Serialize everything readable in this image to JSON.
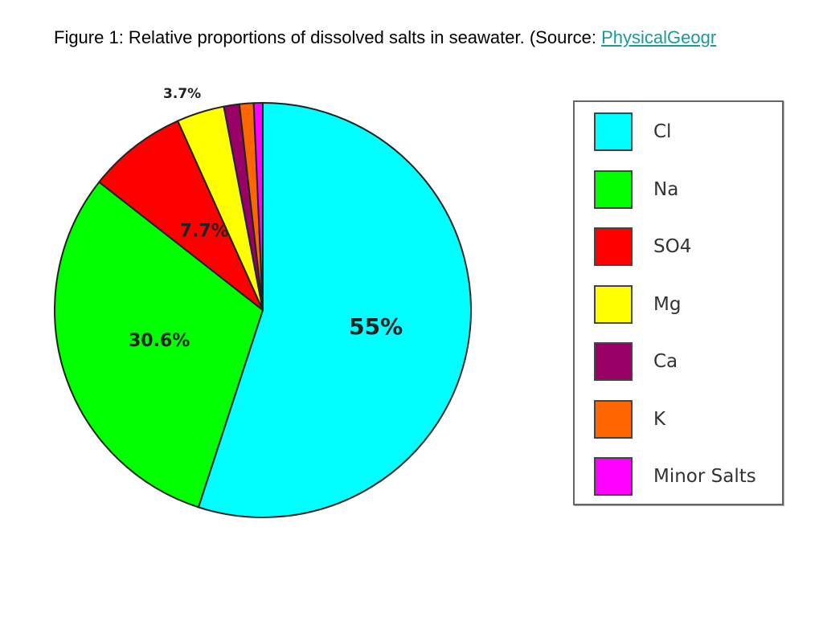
{
  "caption": {
    "text": "Figure 1: Relative proportions of dissolved salts in seawater. (Source: ",
    "link_text": "PhysicalGeogr"
  },
  "chart_data": {
    "type": "pie",
    "start_angle_deg": 0,
    "direction": "clockwise",
    "slices": [
      {
        "name": "Cl",
        "value": 55.0,
        "label": "55%",
        "color": "#00ffff"
      },
      {
        "name": "Na",
        "value": 30.6,
        "label": "30.6%",
        "color": "#00ff00"
      },
      {
        "name": "SO4",
        "value": 7.7,
        "label": "7.7%",
        "color": "#ff0000"
      },
      {
        "name": "Mg",
        "value": 3.7,
        "label": "3.7%",
        "color": "#ffff00"
      },
      {
        "name": "Ca",
        "value": 1.2,
        "label": "",
        "color": "#990066"
      },
      {
        "name": "K",
        "value": 1.1,
        "label": "",
        "color": "#ff6600"
      },
      {
        "name": "Minor Salts",
        "value": 0.7,
        "label": "",
        "color": "#ff00ff"
      }
    ],
    "legend": {
      "placement": "right",
      "entries": [
        "Cl",
        "Na",
        "SO4",
        "Mg",
        "Ca",
        "K",
        "Minor Salts"
      ]
    }
  }
}
